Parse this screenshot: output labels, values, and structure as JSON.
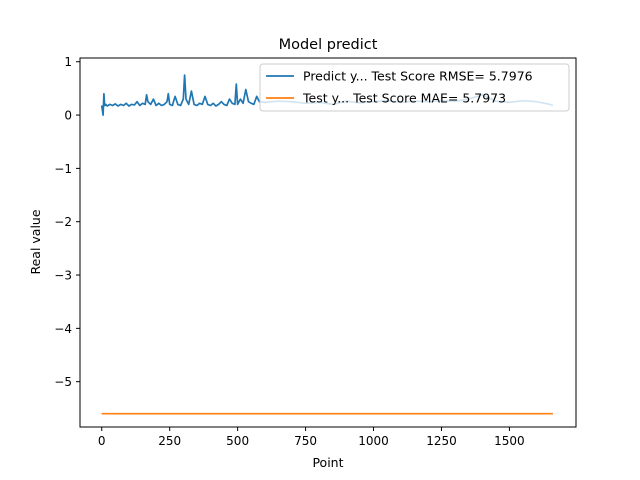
{
  "chart_data": {
    "type": "line",
    "title": "Model predict",
    "xlabel": "Point",
    "ylabel": "Real value",
    "xlim": [
      -80,
      1745
    ],
    "ylim": [
      -5.85,
      1.07
    ],
    "xticks": [
      0,
      250,
      500,
      750,
      1000,
      1250,
      1500
    ],
    "xtick_labels": [
      "0",
      "250",
      "500",
      "750",
      "1000",
      "1250",
      "1500"
    ],
    "yticks": [
      -5,
      -4,
      -3,
      -2,
      -1,
      0,
      1
    ],
    "ytick_labels": [
      "−5",
      "−4",
      "−3",
      "−2",
      "−1",
      "0",
      "1"
    ],
    "grid": false,
    "legend": "upper right",
    "series": [
      {
        "name": "Predict y... Test Score RMSE= 5.7976",
        "color": "#1f77b4",
        "x": [
          0,
          5,
          8,
          10,
          12,
          15,
          20,
          30,
          40,
          50,
          60,
          70,
          80,
          90,
          100,
          110,
          120,
          130,
          140,
          150,
          160,
          165,
          170,
          180,
          190,
          200,
          210,
          220,
          230,
          240,
          245,
          250,
          260,
          270,
          280,
          290,
          300,
          305,
          310,
          320,
          330,
          340,
          350,
          360,
          370,
          380,
          390,
          400,
          410,
          420,
          430,
          440,
          450,
          460,
          470,
          480,
          490,
          495,
          500,
          510,
          520,
          530,
          540,
          550,
          560,
          570,
          580,
          600,
          650,
          700,
          750,
          800,
          850,
          900,
          950,
          1000,
          1050,
          1100,
          1150,
          1200,
          1250,
          1300,
          1350,
          1400,
          1450,
          1500,
          1550,
          1600,
          1650,
          1660
        ],
        "y": [
          0.18,
          0.0,
          0.4,
          0.22,
          0.18,
          0.2,
          0.17,
          0.2,
          0.18,
          0.21,
          0.17,
          0.2,
          0.18,
          0.22,
          0.17,
          0.2,
          0.19,
          0.25,
          0.18,
          0.22,
          0.2,
          0.38,
          0.25,
          0.2,
          0.3,
          0.18,
          0.22,
          0.18,
          0.2,
          0.25,
          0.4,
          0.2,
          0.18,
          0.35,
          0.2,
          0.18,
          0.3,
          0.75,
          0.3,
          0.2,
          0.45,
          0.2,
          0.18,
          0.22,
          0.2,
          0.35,
          0.2,
          0.18,
          0.22,
          0.17,
          0.2,
          0.25,
          0.2,
          0.18,
          0.3,
          0.22,
          0.2,
          0.58,
          0.2,
          0.3,
          0.22,
          0.48,
          0.25,
          0.22,
          0.2,
          0.35,
          0.25,
          0.24,
          0.26,
          0.25,
          0.22,
          0.24,
          0.2,
          0.26,
          0.23,
          0.25,
          0.27,
          0.24,
          0.26,
          0.25,
          0.27,
          0.26,
          0.3,
          0.38,
          0.26,
          0.24,
          0.27,
          0.25,
          0.2,
          0.18
        ]
      },
      {
        "name": "Test y... Test Score MAE= 5.7973",
        "color": "#ff7f0e",
        "x": [
          0,
          1660
        ],
        "y": [
          -5.6,
          -5.6
        ]
      }
    ]
  }
}
